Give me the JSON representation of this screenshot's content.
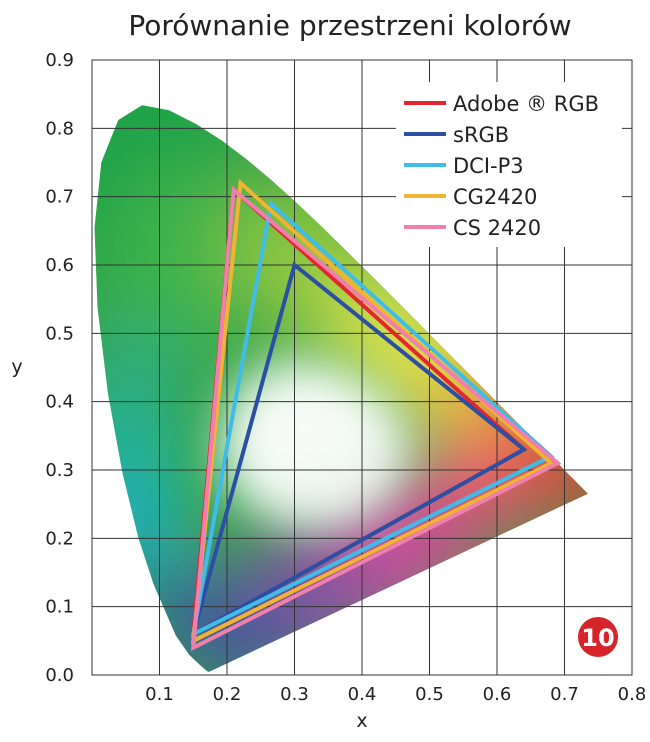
{
  "chart_data": {
    "type": "scatter",
    "title": "Porównanie przestrzeni kolorów",
    "xlabel": "x",
    "ylabel": "y",
    "xlim": [
      0.0,
      0.8
    ],
    "ylim": [
      0.0,
      0.9
    ],
    "x_tick_labels": [
      "0.1",
      "0.2",
      "0.3",
      "0.4",
      "0.5",
      "0.6",
      "0.7",
      "0.8"
    ],
    "x_tick_values": [
      0.1,
      0.2,
      0.3,
      0.4,
      0.5,
      0.6,
      0.7,
      0.8
    ],
    "y_tick_labels": [
      "0.0",
      "0.1",
      "0.2",
      "0.3",
      "0.4",
      "0.5",
      "0.6",
      "0.7",
      "0.8",
      "0.9"
    ],
    "y_tick_values": [
      0.0,
      0.1,
      0.2,
      0.3,
      0.4,
      0.5,
      0.6,
      0.7,
      0.8,
      0.9
    ],
    "grid": true,
    "legend_position": "top-right",
    "series": [
      {
        "name": "Adobe ® RGB",
        "color": "#e3262f",
        "points": [
          [
            0.64,
            0.33
          ],
          [
            0.21,
            0.71
          ],
          [
            0.15,
            0.06
          ]
        ]
      },
      {
        "name": "sRGB",
        "color": "#2b4fa3",
        "points": [
          [
            0.64,
            0.33
          ],
          [
            0.3,
            0.6
          ],
          [
            0.15,
            0.06
          ]
        ]
      },
      {
        "name": "DCI-P3",
        "color": "#3fbde8",
        "points": [
          [
            0.68,
            0.32
          ],
          [
            0.265,
            0.69
          ],
          [
            0.15,
            0.06
          ]
        ]
      },
      {
        "name": "CG2420",
        "color": "#f2b233",
        "points": [
          [
            0.68,
            0.31
          ],
          [
            0.22,
            0.72
          ],
          [
            0.15,
            0.05
          ]
        ]
      },
      {
        "name": "CS 2420",
        "color": "#f07fae",
        "points": [
          [
            0.69,
            0.31
          ],
          [
            0.21,
            0.71
          ],
          [
            0.15,
            0.04
          ]
        ]
      }
    ],
    "spectral_locus": [
      [
        0.1741,
        0.005
      ],
      [
        0.1738,
        0.0049
      ],
      [
        0.1733,
        0.0048
      ],
      [
        0.1726,
        0.0048
      ],
      [
        0.1714,
        0.0051
      ],
      [
        0.1689,
        0.0069
      ],
      [
        0.1644,
        0.0109
      ],
      [
        0.1566,
        0.0177
      ],
      [
        0.144,
        0.0297
      ],
      [
        0.1241,
        0.0578
      ],
      [
        0.0913,
        0.1327
      ],
      [
        0.0687,
        0.2007
      ],
      [
        0.0454,
        0.295
      ],
      [
        0.0235,
        0.4127
      ],
      [
        0.0082,
        0.5384
      ],
      [
        0.0039,
        0.6548
      ],
      [
        0.0139,
        0.7502
      ],
      [
        0.0389,
        0.812
      ],
      [
        0.0743,
        0.8338
      ],
      [
        0.1142,
        0.8262
      ],
      [
        0.1547,
        0.8059
      ],
      [
        0.1929,
        0.7816
      ],
      [
        0.2296,
        0.7543
      ],
      [
        0.2658,
        0.7243
      ],
      [
        0.3016,
        0.6923
      ],
      [
        0.3373,
        0.6589
      ],
      [
        0.3731,
        0.6245
      ],
      [
        0.4087,
        0.5896
      ],
      [
        0.4441,
        0.5547
      ],
      [
        0.4788,
        0.5202
      ],
      [
        0.5125,
        0.4866
      ],
      [
        0.5448,
        0.4544
      ],
      [
        0.5752,
        0.4242
      ],
      [
        0.6029,
        0.3965
      ],
      [
        0.627,
        0.3725
      ],
      [
        0.6482,
        0.3514
      ],
      [
        0.6658,
        0.334
      ],
      [
        0.6801,
        0.3197
      ],
      [
        0.6915,
        0.3083
      ],
      [
        0.7006,
        0.2993
      ],
      [
        0.7079,
        0.292
      ],
      [
        0.714,
        0.2859
      ],
      [
        0.719,
        0.2809
      ],
      [
        0.723,
        0.277
      ],
      [
        0.726,
        0.274
      ],
      [
        0.7347,
        0.2653
      ]
    ],
    "badge": "10",
    "badge_color": "#d6252a"
  }
}
